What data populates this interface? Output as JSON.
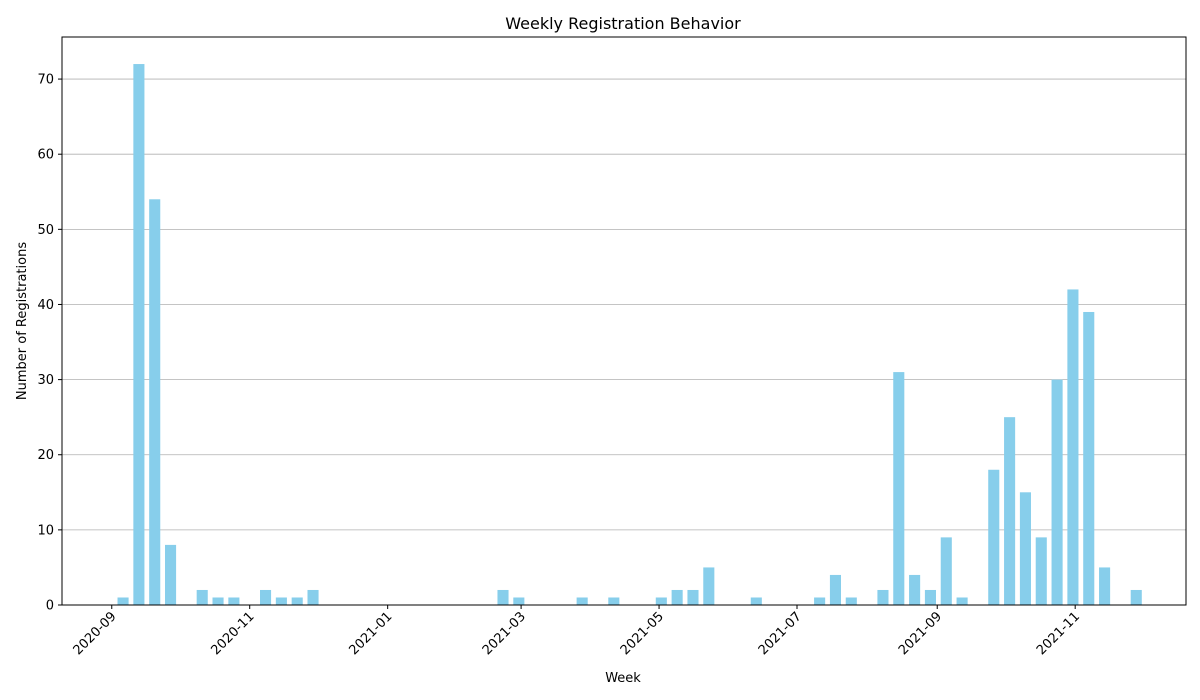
{
  "chart_data": {
    "type": "bar",
    "title": "Weekly Registration Behavior",
    "xlabel": "Week",
    "ylabel": "Number of Registrations",
    "x_tick_labels": [
      "2020-09",
      "2020-11",
      "2021-01",
      "2021-03",
      "2021-05",
      "2021-07",
      "2021-09",
      "2021-11"
    ],
    "y_ticks": [
      0,
      10,
      20,
      30,
      40,
      50,
      60,
      70
    ],
    "xlim": [
      "2020-08-10",
      "2021-12-20"
    ],
    "ylim": [
      0,
      75.6
    ],
    "grid": "y",
    "bar_color": "#87CEEB",
    "x": [
      "2020-09-06",
      "2020-09-13",
      "2020-09-20",
      "2020-09-27",
      "2020-10-11",
      "2020-10-18",
      "2020-10-25",
      "2020-11-08",
      "2020-11-15",
      "2020-11-22",
      "2020-11-29",
      "2021-02-21",
      "2021-02-28",
      "2021-03-28",
      "2021-04-11",
      "2021-05-02",
      "2021-05-09",
      "2021-05-16",
      "2021-05-23",
      "2021-06-13",
      "2021-07-11",
      "2021-07-18",
      "2021-07-25",
      "2021-08-08",
      "2021-08-15",
      "2021-08-22",
      "2021-08-29",
      "2021-09-05",
      "2021-09-12",
      "2021-09-26",
      "2021-10-03",
      "2021-10-10",
      "2021-10-17",
      "2021-10-24",
      "2021-10-31",
      "2021-11-07",
      "2021-11-14",
      "2021-11-28"
    ],
    "values": [
      1,
      72,
      54,
      8,
      2,
      1,
      1,
      2,
      1,
      1,
      2,
      2,
      1,
      1,
      1,
      1,
      2,
      2,
      5,
      1,
      1,
      4,
      1,
      2,
      31,
      4,
      2,
      9,
      1,
      18,
      25,
      15,
      9,
      30,
      42,
      39,
      5,
      2
    ]
  }
}
